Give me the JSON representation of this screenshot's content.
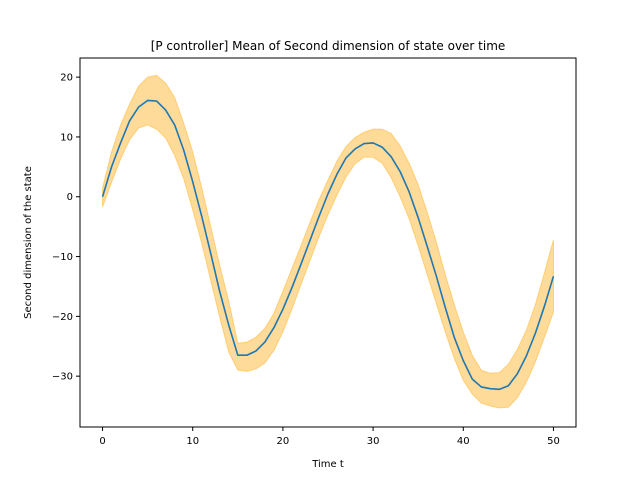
{
  "chart_data": {
    "type": "line",
    "title": "[P controller] Mean of Second dimension of state over time",
    "xlabel": "Time t",
    "ylabel": "Second dimension of the state",
    "xlim": [
      -2.5,
      52.5
    ],
    "ylim": [
      -38.5,
      23.2
    ],
    "xticks": [
      0,
      10,
      20,
      30,
      40,
      50
    ],
    "yticks": [
      -30,
      -20,
      -10,
      0,
      10,
      20
    ],
    "grid": false,
    "legend": "none",
    "colors": {
      "line": "#1f77b4",
      "band_fill": "#ffa500",
      "band_opacity": 0.4
    },
    "x": [
      0,
      1,
      2,
      3,
      4,
      5,
      6,
      7,
      8,
      9,
      10,
      11,
      12,
      13,
      14,
      15,
      16,
      17,
      18,
      19,
      20,
      21,
      22,
      23,
      24,
      25,
      26,
      27,
      28,
      29,
      30,
      31,
      32,
      33,
      34,
      35,
      36,
      37,
      38,
      39,
      40,
      41,
      42,
      43,
      44,
      45,
      46,
      47,
      48,
      49,
      50
    ],
    "series": [
      {
        "values": [
          0.0,
          5.0,
          9.0,
          12.7,
          15.0,
          16.1,
          16.0,
          14.5,
          12.0,
          7.8,
          2.5,
          -3.3,
          -9.5,
          -15.9,
          -21.5,
          -26.5,
          -26.5,
          -25.8,
          -24.3,
          -21.9,
          -18.8,
          -15.2,
          -11.3,
          -7.3,
          -3.3,
          0.5,
          3.8,
          6.5,
          8.0,
          8.9,
          9.0,
          8.3,
          6.7,
          4.2,
          0.8,
          -3.5,
          -8.3,
          -13.2,
          -18.5,
          -23.5,
          -27.4,
          -30.5,
          -31.8,
          -32.1,
          -32.2,
          -31.6,
          -29.6,
          -26.6,
          -22.8,
          -18.3,
          -13.3
        ]
      }
    ],
    "band": {
      "upper": [
        1.5,
        7.5,
        12.0,
        15.5,
        18.5,
        20.0,
        20.3,
        19.0,
        16.6,
        12.3,
        7.5,
        1.5,
        -5.0,
        -11.5,
        -17.5,
        -24.5,
        -24.3,
        -23.5,
        -22.0,
        -19.5,
        -15.8,
        -12.0,
        -8.2,
        -4.3,
        -0.5,
        2.8,
        6.0,
        8.4,
        9.9,
        10.8,
        11.3,
        11.3,
        10.6,
        8.5,
        5.6,
        2.0,
        -2.6,
        -7.5,
        -13.0,
        -18.0,
        -22.6,
        -26.5,
        -29.0,
        -29.5,
        -29.4,
        -28.0,
        -25.5,
        -22.3,
        -18.0,
        -12.7,
        -7.2
      ],
      "lower": [
        -1.7,
        2.4,
        6.3,
        9.5,
        11.5,
        12.0,
        11.3,
        9.8,
        6.9,
        3.0,
        -2.2,
        -7.8,
        -14.0,
        -20.2,
        -26.0,
        -29.0,
        -29.2,
        -28.8,
        -27.8,
        -25.7,
        -22.6,
        -18.8,
        -14.7,
        -10.7,
        -6.7,
        -3.0,
        0.3,
        3.3,
        5.5,
        6.6,
        6.6,
        5.6,
        3.2,
        0.0,
        -3.7,
        -8.2,
        -13.0,
        -17.8,
        -22.6,
        -27.0,
        -30.7,
        -33.0,
        -34.5,
        -35.0,
        -35.3,
        -35.2,
        -33.6,
        -31.0,
        -27.6,
        -23.5,
        -19.3
      ]
    }
  }
}
